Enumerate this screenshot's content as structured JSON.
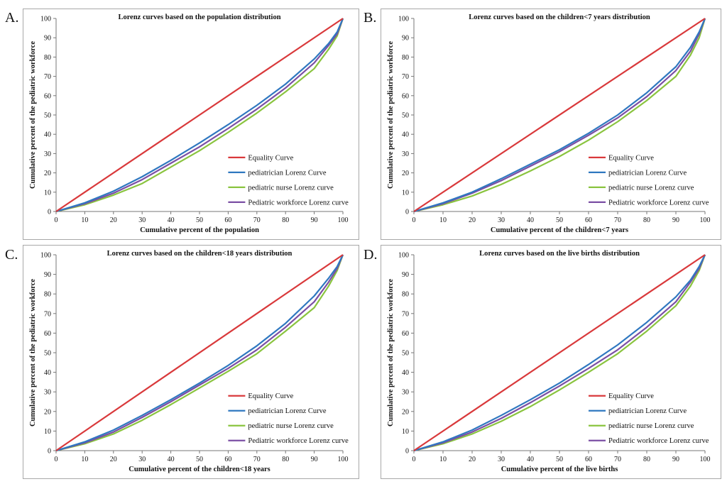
{
  "colors": {
    "equality": "#d9393b",
    "pediatrician": "#2f78c0",
    "nurse": "#8ac43f",
    "workforce": "#7b4fa4"
  },
  "chart_data": [
    {
      "panel": "A.",
      "type": "line",
      "title": "Lorenz curves based on the population distribution",
      "xlabel": "Cumulative percent  of the population",
      "ylabel": "Cumulative percent  of the pediatric workforce",
      "xlim": [
        0,
        100
      ],
      "ylim": [
        0,
        100
      ],
      "xticks": [
        "0",
        "10",
        "20",
        "30",
        "40",
        "50",
        "60",
        "70",
        "80",
        "90",
        "100"
      ],
      "yticks": [
        "0",
        "10",
        "20",
        "30",
        "40",
        "50",
        "60",
        "70",
        "80",
        "90",
        "100"
      ],
      "legend": "right",
      "series": [
        {
          "name": "Equality Curve",
          "key": "equality",
          "x": [
            0,
            100
          ],
          "y": [
            0,
            100
          ]
        },
        {
          "name": "pediatrician Lorenz Curve",
          "key": "pediatrician",
          "x": [
            0,
            10,
            20,
            30,
            40,
            50,
            60,
            70,
            80,
            90,
            95,
            98,
            100
          ],
          "y": [
            0,
            4.5,
            10.5,
            18,
            26.5,
            35.5,
            45,
            55,
            66,
            79,
            87,
            93,
            100
          ]
        },
        {
          "name": "pediatric nurse Lorenz curve",
          "key": "nurse",
          "x": [
            0,
            10,
            20,
            30,
            40,
            50,
            60,
            70,
            80,
            90,
            95,
            98,
            100
          ],
          "y": [
            0,
            3.5,
            8.5,
            14.5,
            23,
            31.5,
            41,
            51,
            62,
            74,
            84,
            91,
            100
          ]
        },
        {
          "name": "Pediatric workforce Lorenz curve",
          "key": "workforce",
          "x": [
            0,
            10,
            20,
            30,
            40,
            50,
            60,
            70,
            80,
            90,
            95,
            98,
            100
          ],
          "y": [
            0,
            4,
            9.5,
            16.5,
            25,
            33.5,
            43,
            53,
            64,
            77,
            86,
            92,
            100
          ]
        }
      ]
    },
    {
      "panel": "B.",
      "type": "line",
      "title": "Lorenz curves based on the children<7 years distribution",
      "xlabel": "Cumulative percent  of the children<7 years",
      "ylabel": "Cumulative percent  of the pediatric workforce",
      "xlim": [
        0,
        100
      ],
      "ylim": [
        0,
        100
      ],
      "xticks": [
        "0",
        "10",
        "20",
        "30",
        "40",
        "50",
        "60",
        "70",
        "80",
        "90",
        "100"
      ],
      "yticks": [
        "0",
        "10",
        "20",
        "30",
        "40",
        "50",
        "60",
        "70",
        "80",
        "90",
        "100"
      ],
      "legend": "right",
      "series": [
        {
          "name": "Equality Curve",
          "key": "equality",
          "x": [
            0,
            100
          ],
          "y": [
            0,
            100
          ]
        },
        {
          "name": "pediatrician Lorenz Curve",
          "key": "pediatrician",
          "x": [
            0,
            10,
            20,
            30,
            40,
            50,
            60,
            70,
            80,
            90,
            95,
            98,
            100
          ],
          "y": [
            0,
            4.5,
            10,
            17,
            24.5,
            32,
            40.5,
            50,
            61.5,
            75,
            85,
            93,
            100
          ]
        },
        {
          "name": "pediatric nurse Lorenz curve",
          "key": "nurse",
          "x": [
            0,
            10,
            20,
            30,
            40,
            50,
            60,
            70,
            80,
            90,
            95,
            98,
            100
          ],
          "y": [
            0,
            3.5,
            8,
            14,
            21,
            28.5,
            37,
            46.5,
            57.5,
            70,
            81,
            90,
            100
          ]
        },
        {
          "name": "Pediatric workforce Lorenz curve",
          "key": "workforce",
          "x": [
            0,
            10,
            20,
            30,
            40,
            50,
            60,
            70,
            80,
            90,
            95,
            98,
            100
          ],
          "y": [
            0,
            4,
            9.5,
            16,
            23.5,
            31,
            39.5,
            48.5,
            59.5,
            73,
            83,
            92,
            100
          ]
        }
      ]
    },
    {
      "panel": "C.",
      "type": "line",
      "title": "Lorenz curves based on the children<18 years distribution",
      "xlabel": "Cumulative percent  of the children<18 years",
      "ylabel": "Cumulative percent  of the pediatric workforce",
      "xlim": [
        0,
        100
      ],
      "ylim": [
        0,
        100
      ],
      "xticks": [
        "0",
        "10",
        "20",
        "30",
        "40",
        "50",
        "60",
        "70",
        "80",
        "90",
        "100"
      ],
      "yticks": [
        "0",
        "10",
        "20",
        "30",
        "40",
        "50",
        "60",
        "70",
        "80",
        "90",
        "100"
      ],
      "legend": "right",
      "series": [
        {
          "name": "Equality Curve",
          "key": "equality",
          "x": [
            0,
            100
          ],
          "y": [
            0,
            100
          ]
        },
        {
          "name": "pediatrician Lorenz Curve",
          "key": "pediatrician",
          "x": [
            0,
            10,
            20,
            30,
            40,
            50,
            60,
            70,
            80,
            90,
            95,
            98,
            100
          ],
          "y": [
            0,
            4.5,
            10.5,
            18,
            26,
            34.5,
            43.5,
            53.5,
            65,
            79,
            88,
            94,
            100
          ]
        },
        {
          "name": "pediatric nurse Lorenz curve",
          "key": "nurse",
          "x": [
            0,
            10,
            20,
            30,
            40,
            50,
            60,
            70,
            80,
            90,
            95,
            98,
            100
          ],
          "y": [
            0,
            3.5,
            8.5,
            15.5,
            23.5,
            32,
            40.5,
            49.5,
            61,
            73,
            84,
            92,
            100
          ]
        },
        {
          "name": "Pediatric workforce Lorenz curve",
          "key": "workforce",
          "x": [
            0,
            10,
            20,
            30,
            40,
            50,
            60,
            70,
            80,
            90,
            95,
            98,
            100
          ],
          "y": [
            0,
            4,
            9.5,
            17,
            25,
            33.5,
            42,
            51.5,
            63,
            76,
            86,
            93,
            100
          ]
        }
      ]
    },
    {
      "panel": "D.",
      "type": "line",
      "title": "Lorenz curves based on the live births distribution",
      "xlabel": "Cumulative percent  of the live births",
      "ylabel": "Cumulative percent  of the pediatric workforce",
      "xlim": [
        0,
        100
      ],
      "ylim": [
        0,
        100
      ],
      "xticks": [
        "0",
        "10",
        "20",
        "30",
        "40",
        "50",
        "60",
        "70",
        "80",
        "90",
        "100"
      ],
      "yticks": [
        "0",
        "10",
        "20",
        "30",
        "40",
        "50",
        "60",
        "70",
        "80",
        "90",
        "100"
      ],
      "legend": "right",
      "series": [
        {
          "name": "Equality Curve",
          "key": "equality",
          "x": [
            0,
            100
          ],
          "y": [
            0,
            100
          ]
        },
        {
          "name": "pediatrician Lorenz Curve",
          "key": "pediatrician",
          "x": [
            0,
            10,
            20,
            30,
            40,
            50,
            60,
            70,
            80,
            90,
            95,
            98,
            100
          ],
          "y": [
            0,
            4.5,
            10.5,
            18,
            26,
            34.5,
            44,
            54,
            65.5,
            78.5,
            87,
            94,
            100
          ]
        },
        {
          "name": "pediatric nurse Lorenz curve",
          "key": "nurse",
          "x": [
            0,
            10,
            20,
            30,
            40,
            50,
            60,
            70,
            80,
            90,
            95,
            98,
            100
          ],
          "y": [
            0,
            3.5,
            8.5,
            15,
            22.5,
            31,
            40,
            49.5,
            61,
            74,
            84,
            92,
            100
          ]
        },
        {
          "name": "Pediatric workforce Lorenz curve",
          "key": "workforce",
          "x": [
            0,
            10,
            20,
            30,
            40,
            50,
            60,
            70,
            80,
            90,
            95,
            98,
            100
          ],
          "y": [
            0,
            4,
            9.5,
            16.5,
            24.5,
            33,
            42,
            51.5,
            63,
            76,
            86,
            93,
            100
          ]
        }
      ]
    }
  ]
}
